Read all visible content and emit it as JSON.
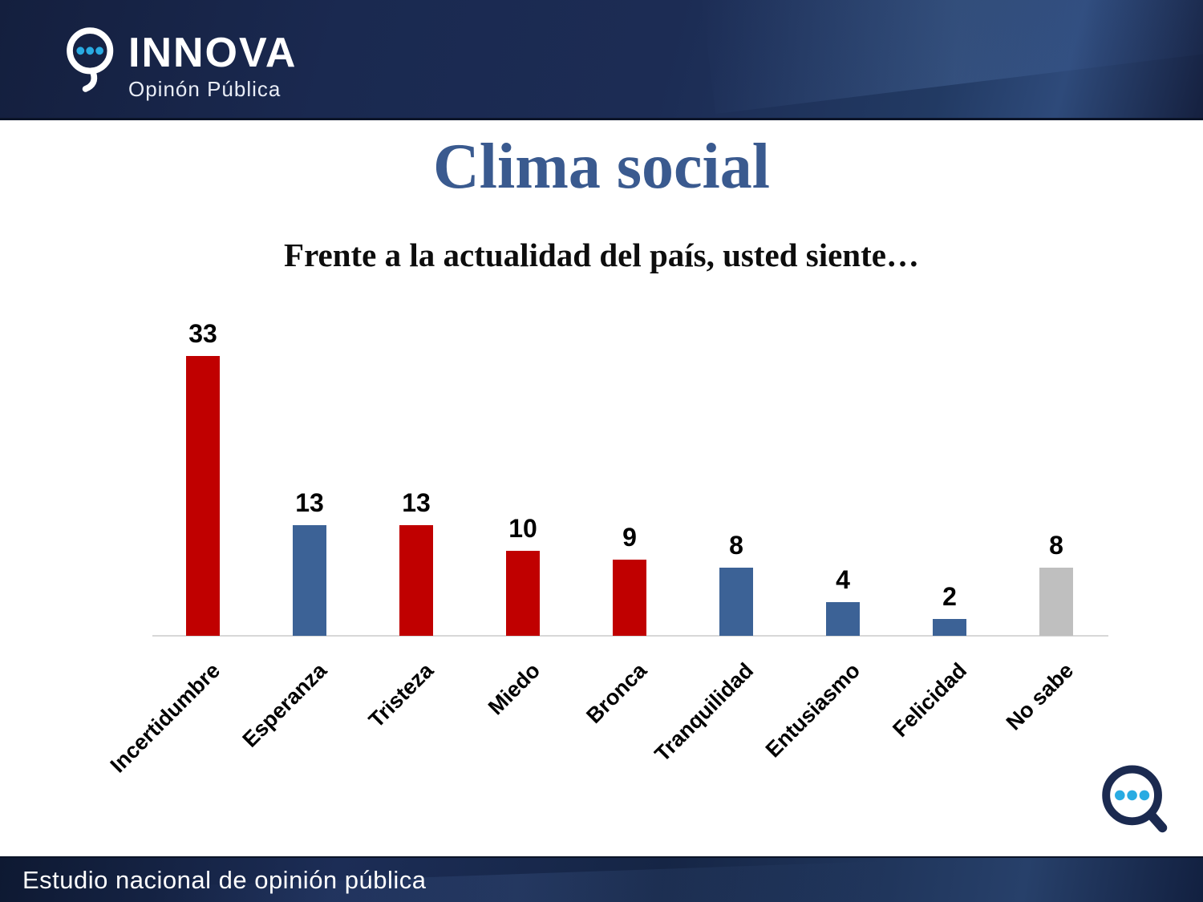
{
  "header": {
    "brand": "INNOVA",
    "tagline": "Opinón Pública"
  },
  "title": "Clima social",
  "subtitle": "Frente a la actualidad del país, usted siente…",
  "footer": {
    "text": "Estudio nacional de opinión pública"
  },
  "icons": {
    "logo_icon": "speech-bubble-magnifier",
    "corner_icon": "speech-bubble-magnifier",
    "dot_color": "#29abe2",
    "corner_icon_color": "#1b2a50"
  },
  "colors": {
    "band_navy": "#1a2950",
    "title_blue": "#3a5a8f",
    "bar_red": "#c00000",
    "bar_blue": "#3c6296",
    "bar_gray": "#bfbfbf",
    "axis_line": "#d8d8d8"
  },
  "chart_data": {
    "type": "bar",
    "title": "Clima social",
    "subtitle": "Frente a la actualidad del país, usted siente…",
    "categories": [
      "Incertidumbre",
      "Esperanza",
      "Tristeza",
      "Miedo",
      "Bronca",
      "Tranquilidad",
      "Entusiasmo",
      "Felicidad",
      "No sabe"
    ],
    "values": [
      33,
      13,
      13,
      10,
      9,
      8,
      4,
      2,
      8
    ],
    "bar_colors": [
      "#c00000",
      "#3c6296",
      "#c00000",
      "#c00000",
      "#c00000",
      "#3c6296",
      "#3c6296",
      "#3c6296",
      "#bfbfbf"
    ],
    "value_labels_shown": true,
    "xlabel": "",
    "ylabel": "",
    "ylim": [
      0,
      35
    ],
    "gridlines": false,
    "legend": "none",
    "x_tick_rotation": 45
  }
}
